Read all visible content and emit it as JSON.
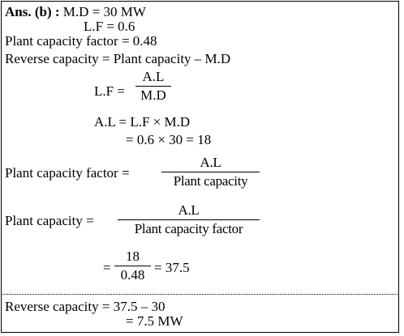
{
  "header": {
    "ans_label": "Ans. (b) :",
    "md_line": "M.D = 30 MW",
    "lf_line": "L.F = 0.6"
  },
  "given": {
    "pcf_line": "Plant capacity factor = 0.48",
    "reverse_line": "Reverse capacity = Plant capacity – M.D"
  },
  "lf_formula": {
    "lhs": "L.F =",
    "num": "A.L",
    "den": "M.D"
  },
  "al_calc": {
    "line1": "A.L = L.F × M.D",
    "line2": "= 0.6 × 30 = 18"
  },
  "pcf_formula": {
    "lhs": "Plant capacity factor =",
    "num": "A.L",
    "den": "Plant capacity"
  },
  "pc_formula": {
    "lhs": "Plant capacity =",
    "num": "A.L",
    "den": "Plant capacity factor"
  },
  "pc_calc": {
    "lhs": "=",
    "num": "18",
    "den": "0.48",
    "rhs": "= 37.5"
  },
  "result": {
    "line1": "Reverse capacity = 37.5 – 30",
    "line2": "= 7.5 MW"
  }
}
